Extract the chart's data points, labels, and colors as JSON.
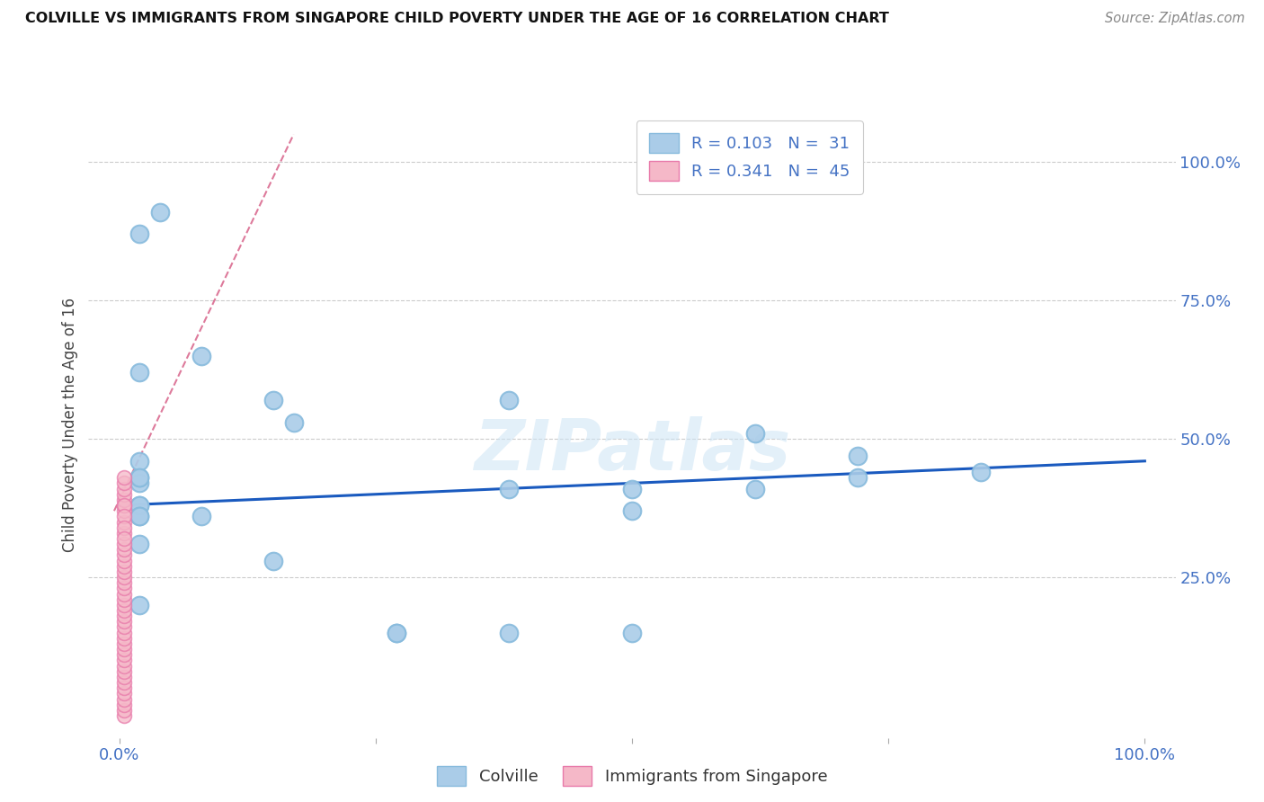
{
  "title": "COLVILLE VS IMMIGRANTS FROM SINGAPORE CHILD POVERTY UNDER THE AGE OF 16 CORRELATION CHART",
  "source": "Source: ZipAtlas.com",
  "ylabel": "Child Poverty Under the Age of 16",
  "ytick_labels": [
    "",
    "25.0%",
    "50.0%",
    "75.0%",
    "100.0%"
  ],
  "ytick_positions": [
    0.0,
    0.25,
    0.5,
    0.75,
    1.0
  ],
  "xtick_labels": [
    "0.0%",
    "",
    "",
    "",
    "100.0%"
  ],
  "xtick_positions": [
    0.0,
    0.25,
    0.5,
    0.75,
    1.0
  ],
  "xlim": [
    -0.03,
    1.03
  ],
  "ylim": [
    -0.04,
    1.09
  ],
  "colville_color": "#aacce8",
  "colville_edge": "#88bbdd",
  "singapore_color": "#f5b8c8",
  "singapore_edge": "#e87aaa",
  "trend_blue": "#1a5abf",
  "trend_pink": "#cc3366",
  "legend_line1": "R = 0.103   N =  31",
  "legend_line2": "R = 0.341   N =  45",
  "watermark": "ZIPatlas",
  "colville_x": [
    0.02,
    0.04,
    0.02,
    0.08,
    0.02,
    0.02,
    0.17,
    0.08,
    0.02,
    0.5,
    0.5,
    0.62,
    0.72,
    0.62,
    0.72,
    0.5,
    0.38,
    0.38,
    0.02,
    0.02,
    0.15,
    0.15,
    0.02,
    0.02,
    0.02,
    0.27,
    0.27,
    0.02,
    0.02,
    0.84,
    0.38
  ],
  "colville_y": [
    0.87,
    0.91,
    0.62,
    0.65,
    0.42,
    0.38,
    0.53,
    0.36,
    0.43,
    0.41,
    0.37,
    0.41,
    0.47,
    0.51,
    0.43,
    0.15,
    0.15,
    0.41,
    0.31,
    0.2,
    0.28,
    0.57,
    0.46,
    0.38,
    0.36,
    0.15,
    0.15,
    0.36,
    0.43,
    0.44,
    0.57
  ],
  "singapore_x": [
    0.005,
    0.005,
    0.005,
    0.005,
    0.005,
    0.005,
    0.005,
    0.005,
    0.005,
    0.005,
    0.005,
    0.005,
    0.005,
    0.005,
    0.005,
    0.005,
    0.005,
    0.005,
    0.005,
    0.005,
    0.005,
    0.005,
    0.005,
    0.005,
    0.005,
    0.005,
    0.005,
    0.005,
    0.005,
    0.005,
    0.005,
    0.005,
    0.005,
    0.005,
    0.005,
    0.005,
    0.005,
    0.005,
    0.005,
    0.005,
    0.005,
    0.005,
    0.005,
    0.005,
    0.005
  ],
  "singapore_y": [
    0.0,
    0.01,
    0.02,
    0.03,
    0.04,
    0.05,
    0.06,
    0.07,
    0.08,
    0.09,
    0.1,
    0.11,
    0.12,
    0.13,
    0.14,
    0.15,
    0.16,
    0.17,
    0.18,
    0.19,
    0.2,
    0.21,
    0.22,
    0.23,
    0.24,
    0.25,
    0.26,
    0.27,
    0.28,
    0.29,
    0.3,
    0.31,
    0.33,
    0.35,
    0.37,
    0.38,
    0.39,
    0.4,
    0.41,
    0.42,
    0.43,
    0.38,
    0.36,
    0.34,
    0.32
  ],
  "blue_trend_x": [
    0.0,
    1.0
  ],
  "blue_trend_y": [
    0.38,
    0.46
  ],
  "pink_trend_x": [
    -0.005,
    0.17
  ],
  "pink_trend_y": [
    0.37,
    1.05
  ]
}
